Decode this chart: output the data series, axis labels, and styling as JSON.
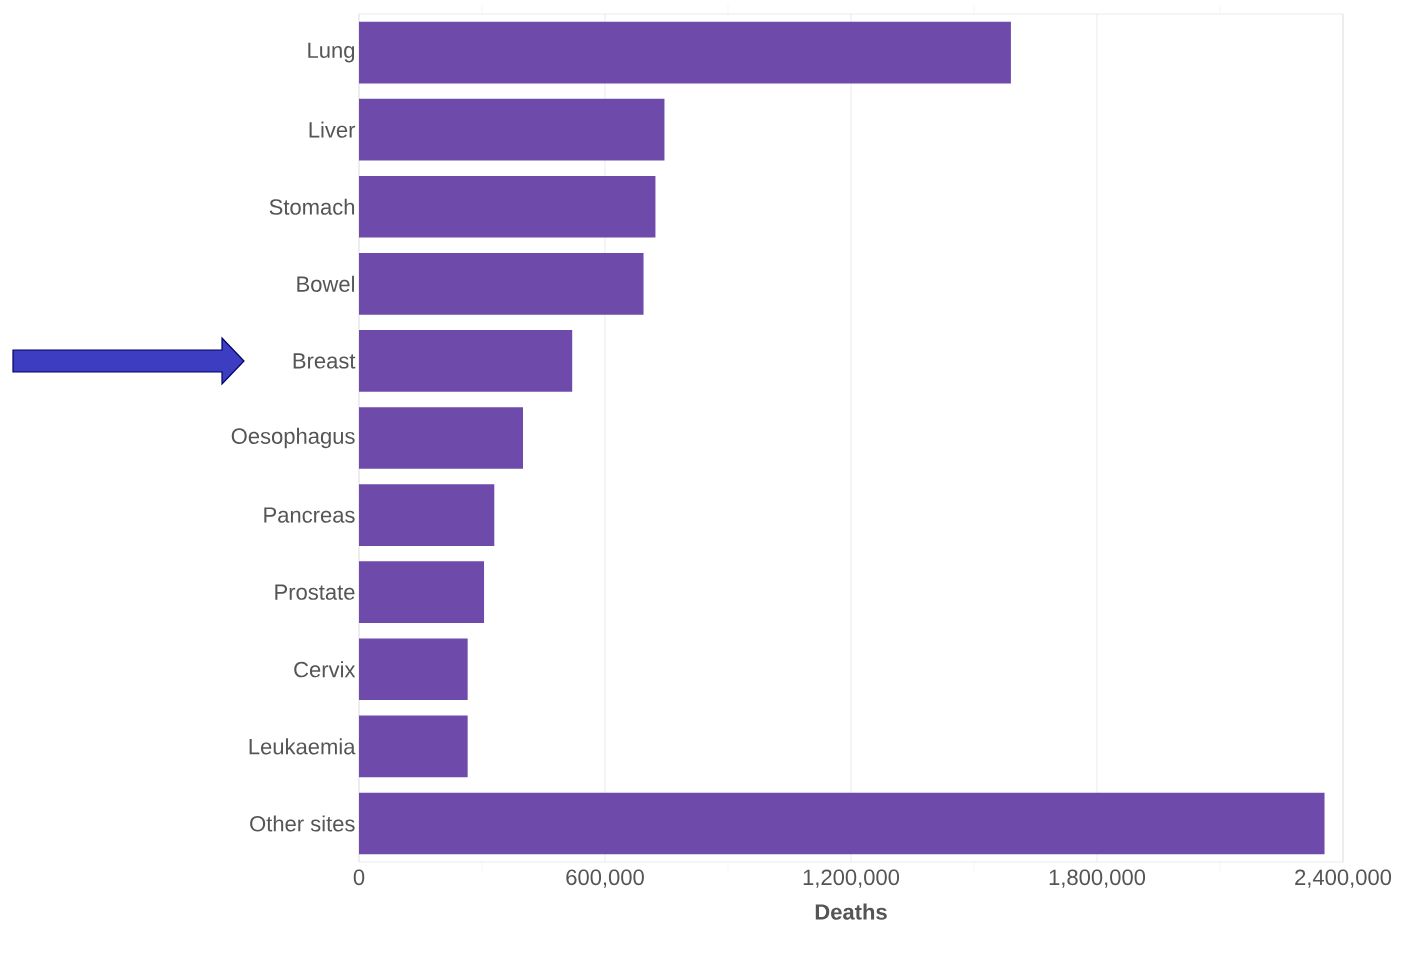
{
  "chart_data": {
    "type": "bar",
    "orientation": "horizontal",
    "xlabel": "Deaths",
    "categories": [
      "Lung",
      "Liver",
      "Stomach",
      "Bowel",
      "Breast",
      "Oesophagus",
      "Pancreas",
      "Prostate",
      "Cervix",
      "Leukaemia",
      "Other sites"
    ],
    "values": [
      1590000,
      745000,
      723000,
      694000,
      520000,
      400000,
      330000,
      305000,
      265000,
      265000,
      2355000
    ],
    "color": "#6e4aab",
    "xlim": [
      0,
      2400000
    ],
    "xticks": [
      {
        "value": 0,
        "label": "0"
      },
      {
        "value": 300000,
        "label": null
      },
      {
        "value": 600000,
        "label": "600,000"
      },
      {
        "value": 900000,
        "label": null
      },
      {
        "value": 1200000,
        "label": "1,200,000"
      },
      {
        "value": 1500000,
        "label": null
      },
      {
        "value": 1800000,
        "label": "1,800,000"
      },
      {
        "value": 2100000,
        "label": null
      },
      {
        "value": 2400000,
        "label": "2,400,000"
      }
    ],
    "grid": "x"
  }
}
